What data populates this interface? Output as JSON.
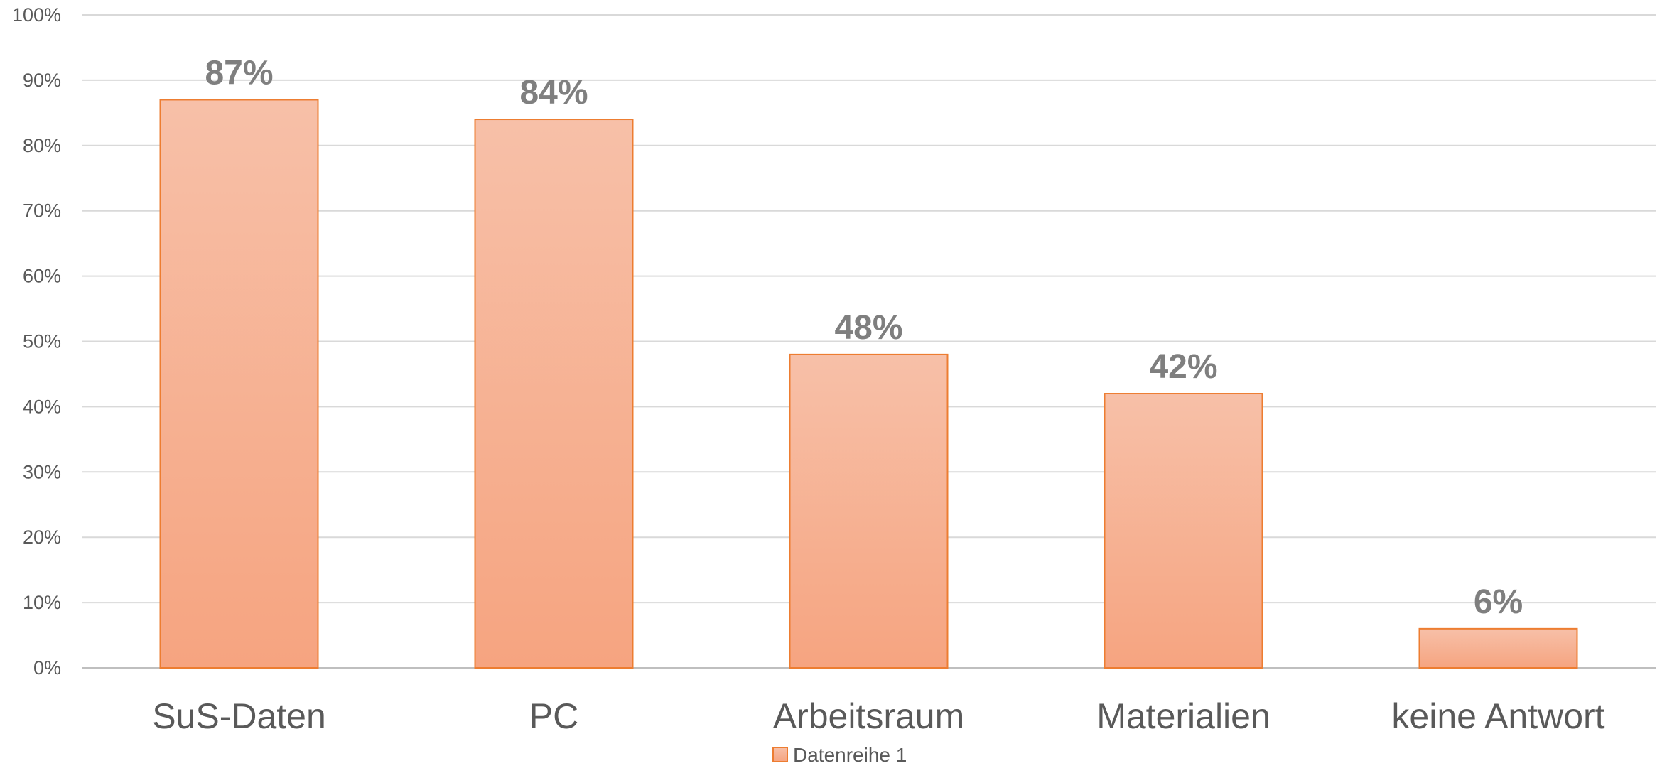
{
  "chart_data": {
    "type": "bar",
    "title": "",
    "xlabel": "",
    "ylabel": "",
    "categories": [
      "SuS-Daten",
      "PC",
      "Arbeitsraum",
      "Materialien",
      "keine Antwort"
    ],
    "series": [
      {
        "name": "Datenreihe 1",
        "values": [
          87,
          84,
          48,
          42,
          6
        ],
        "color": "#f4a582"
      }
    ],
    "data_labels": [
      "87%",
      "84%",
      "48%",
      "42%",
      "6%"
    ],
    "y_ticks": [
      "0%",
      "10%",
      "20%",
      "30%",
      "40%",
      "50%",
      "60%",
      "70%",
      "80%",
      "90%",
      "100%"
    ],
    "ylim": [
      0,
      100
    ],
    "grid": true,
    "legend": {
      "position": "bottom",
      "entries": [
        "Datenreihe 1"
      ]
    },
    "colors": {
      "bar_top": "#f7c0a8",
      "bar_bottom": "#f6a480",
      "bar_border": "#ed7d31"
    }
  }
}
